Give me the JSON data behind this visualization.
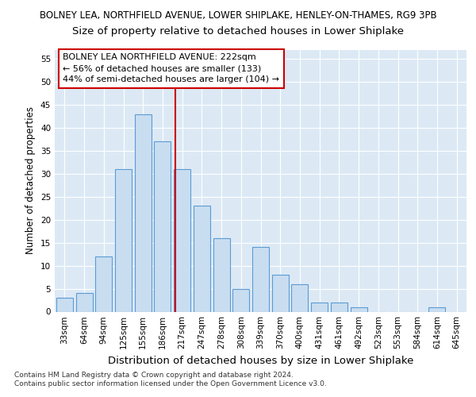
{
  "suptitle": "BOLNEY LEA, NORTHFIELD AVENUE, LOWER SHIPLAKE, HENLEY-ON-THAMES, RG9 3PB",
  "title": "Size of property relative to detached houses in Lower Shiplake",
  "xlabel": "Distribution of detached houses by size in Lower Shiplake",
  "ylabel": "Number of detached properties",
  "footnote": "Contains HM Land Registry data © Crown copyright and database right 2024.\nContains public sector information licensed under the Open Government Licence v3.0.",
  "bar_labels": [
    "33sqm",
    "64sqm",
    "94sqm",
    "125sqm",
    "155sqm",
    "186sqm",
    "217sqm",
    "247sqm",
    "278sqm",
    "308sqm",
    "339sqm",
    "370sqm",
    "400sqm",
    "431sqm",
    "461sqm",
    "492sqm",
    "523sqm",
    "553sqm",
    "584sqm",
    "614sqm",
    "645sqm"
  ],
  "bar_values": [
    3,
    4,
    12,
    31,
    43,
    37,
    31,
    23,
    16,
    5,
    14,
    8,
    6,
    2,
    2,
    1,
    0,
    0,
    0,
    1,
    0
  ],
  "bar_color": "#c9ddf0",
  "bar_edge_color": "#5b9bd5",
  "background_color": "#dce9f5",
  "grid_color": "#ffffff",
  "annotation_text": "BOLNEY LEA NORTHFIELD AVENUE: 222sqm\n← 56% of detached houses are smaller (133)\n44% of semi-detached houses are larger (104) →",
  "vline_index": 6,
  "ylim": [
    0,
    57
  ],
  "yticks": [
    0,
    5,
    10,
    15,
    20,
    25,
    30,
    35,
    40,
    45,
    50,
    55
  ],
  "annotation_box_color": "#ffffff",
  "annotation_box_edge": "#cc0000",
  "vline_color": "#cc0000",
  "suptitle_fontsize": 8.5,
  "title_fontsize": 9.5,
  "xlabel_fontsize": 9.5,
  "ylabel_fontsize": 8.5,
  "tick_fontsize": 7.5,
  "footnote_fontsize": 6.5,
  "annotation_fontsize": 8.0
}
